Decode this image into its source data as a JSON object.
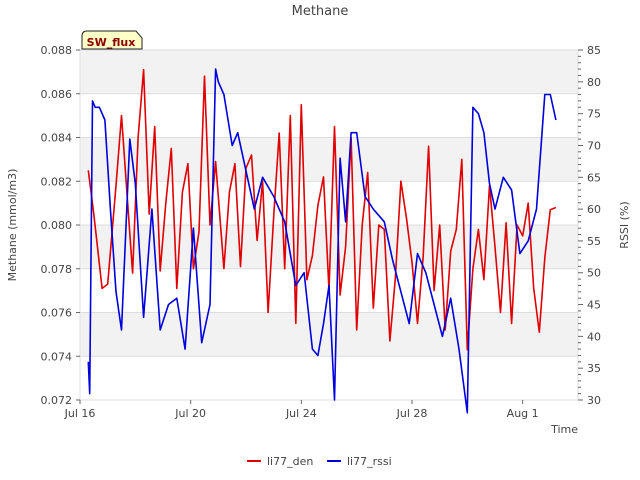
{
  "chart_data": {
    "type": "line",
    "title": "Methane",
    "xlabel": "Time",
    "ylabel": "Methane (mmol/m3)",
    "y2label": "RSSI (%)",
    "site_badge": "SW_flux",
    "xlim": [
      0,
      18
    ],
    "ylim": [
      0.072,
      0.088
    ],
    "y2lim": [
      30,
      85
    ],
    "x_ticks": [
      {
        "x": 0,
        "label": "Jul 16"
      },
      {
        "x": 4,
        "label": "Jul 20"
      },
      {
        "x": 8,
        "label": "Jul 24"
      },
      {
        "x": 12,
        "label": "Jul 28"
      },
      {
        "x": 16,
        "label": "Aug 1"
      }
    ],
    "y_ticks": [
      "0.072",
      "0.074",
      "0.076",
      "0.078",
      "0.080",
      "0.082",
      "0.084",
      "0.086",
      "0.088"
    ],
    "y2_ticks": [
      "30",
      "35",
      "40",
      "45",
      "50",
      "55",
      "60",
      "65",
      "70",
      "75",
      "80",
      "85"
    ],
    "grid": "horizontal bands",
    "legend_position": "bottom-center",
    "series": [
      {
        "name": "li77_den",
        "axis": "left",
        "color": "#e00000",
        "x": [
          0.3,
          0.5,
          0.8,
          1.0,
          1.3,
          1.5,
          1.9,
          2.1,
          2.3,
          2.5,
          2.7,
          2.9,
          3.1,
          3.3,
          3.5,
          3.7,
          3.9,
          4.1,
          4.3,
          4.5,
          4.7,
          4.9,
          5.2,
          5.4,
          5.6,
          5.8,
          6.0,
          6.2,
          6.4,
          6.6,
          6.8,
          7.0,
          7.2,
          7.4,
          7.6,
          7.8,
          8.0,
          8.2,
          8.4,
          8.6,
          8.8,
          9.0,
          9.2,
          9.4,
          9.6,
          9.8,
          10.0,
          10.2,
          10.4,
          10.6,
          10.8,
          11.0,
          11.2,
          11.4,
          11.6,
          11.8,
          12.0,
          12.2,
          12.4,
          12.6,
          12.8,
          13.0,
          13.2,
          13.4,
          13.6,
          13.8,
          14.0,
          14.2,
          14.4,
          14.6,
          14.8,
          15.0,
          15.2,
          15.4,
          15.6,
          15.8,
          16.0,
          16.2,
          16.4,
          16.6,
          16.8,
          17.0,
          17.2
        ],
        "values": [
          0.0825,
          0.0805,
          0.0771,
          0.0773,
          0.0818,
          0.085,
          0.0778,
          0.084,
          0.0871,
          0.0805,
          0.0845,
          0.0779,
          0.081,
          0.0835,
          0.0771,
          0.0815,
          0.0828,
          0.078,
          0.0797,
          0.0868,
          0.08,
          0.0829,
          0.078,
          0.0815,
          0.0828,
          0.0781,
          0.0826,
          0.0832,
          0.0793,
          0.082,
          0.076,
          0.0804,
          0.0842,
          0.078,
          0.085,
          0.0755,
          0.0855,
          0.0775,
          0.0786,
          0.0809,
          0.0822,
          0.077,
          0.0845,
          0.0768,
          0.079,
          0.084,
          0.0752,
          0.08,
          0.0824,
          0.0762,
          0.08,
          0.0798,
          0.0747,
          0.0776,
          0.082,
          0.0803,
          0.0783,
          0.0755,
          0.0785,
          0.0836,
          0.077,
          0.08,
          0.0752,
          0.0788,
          0.0798,
          0.083,
          0.0743,
          0.078,
          0.0798,
          0.0775,
          0.0818,
          0.079,
          0.076,
          0.0801,
          0.0755,
          0.08,
          0.0795,
          0.081,
          0.0771,
          0.0751,
          0.0785,
          0.0807,
          0.0808
        ]
      },
      {
        "name": "li77_rssi",
        "axis": "right",
        "color": "#0000dd",
        "x": [
          0.3,
          0.35,
          0.45,
          0.55,
          0.7,
          0.9,
          1.1,
          1.3,
          1.5,
          1.8,
          2.0,
          2.3,
          2.6,
          2.9,
          3.2,
          3.5,
          3.8,
          4.1,
          4.4,
          4.7,
          4.9,
          5.0,
          5.2,
          5.5,
          5.7,
          6.0,
          6.3,
          6.6,
          7.0,
          7.4,
          7.8,
          8.1,
          8.4,
          8.6,
          8.8,
          9.0,
          9.2,
          9.4,
          9.6,
          9.8,
          10.0,
          10.3,
          10.6,
          11.0,
          11.3,
          11.6,
          11.9,
          12.2,
          12.5,
          12.8,
          13.1,
          13.4,
          13.7,
          14.0,
          14.2,
          14.4,
          14.6,
          14.8,
          15.0,
          15.3,
          15.6,
          15.9,
          16.2,
          16.5,
          16.8,
          17.0,
          17.2
        ],
        "values": [
          36,
          31,
          77,
          76,
          76,
          74,
          60,
          47,
          41,
          71,
          64,
          43,
          60,
          41,
          45,
          46,
          38,
          57,
          39,
          45,
          82,
          80,
          78,
          70,
          72,
          66,
          60,
          65,
          62,
          58,
          48,
          50,
          38,
          37,
          42,
          48,
          30,
          68,
          58,
          72,
          72,
          62,
          60,
          58,
          52,
          47,
          42,
          53,
          50,
          45,
          40,
          46,
          38,
          28,
          76,
          75,
          72,
          64,
          60,
          65,
          63,
          53,
          55,
          60,
          78,
          78,
          74
        ]
      }
    ]
  }
}
